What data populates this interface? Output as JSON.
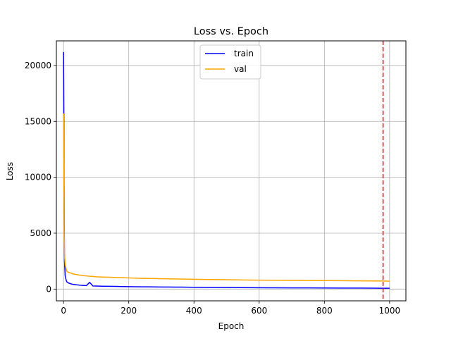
{
  "chart_data": {
    "type": "line",
    "title": "Loss vs. Epoch",
    "xlabel": "Epoch",
    "ylabel": "Loss",
    "xlim": [
      -22,
      1050
    ],
    "ylim": [
      -1050,
      22200
    ],
    "grid": true,
    "legend_placement": "top-center",
    "x_ticks": [
      0,
      200,
      400,
      600,
      800,
      1000
    ],
    "y_ticks": [
      0,
      5000,
      10000,
      15000,
      20000
    ],
    "series": [
      {
        "name": "train",
        "color": "#0000ff",
        "x": [
          0,
          1,
          2,
          3,
          5,
          8,
          10,
          15,
          20,
          25,
          30,
          40,
          50,
          60,
          70,
          80,
          90,
          100,
          120,
          140,
          160,
          180,
          200,
          220,
          240,
          260,
          280,
          300,
          320,
          340,
          360,
          380,
          400,
          450,
          500,
          550,
          600,
          650,
          700,
          750,
          800,
          850,
          900,
          950,
          980,
          1000
        ],
        "values": [
          21200,
          15000,
          6500,
          2500,
          1200,
          800,
          650,
          550,
          500,
          450,
          420,
          380,
          350,
          330,
          310,
          600,
          280,
          270,
          260,
          250,
          240,
          230,
          220,
          210,
          205,
          200,
          195,
          190,
          185,
          180,
          175,
          170,
          165,
          150,
          140,
          130,
          120,
          115,
          110,
          105,
          100,
          95,
          90,
          85,
          80,
          75
        ]
      },
      {
        "name": "val",
        "color": "#ffa500",
        "x": [
          0,
          1,
          2,
          3,
          5,
          8,
          10,
          15,
          20,
          25,
          30,
          40,
          50,
          60,
          70,
          80,
          90,
          100,
          120,
          140,
          160,
          180,
          200,
          220,
          240,
          260,
          280,
          300,
          320,
          340,
          360,
          380,
          400,
          450,
          500,
          550,
          600,
          650,
          700,
          750,
          800,
          850,
          900,
          950,
          980,
          1000
        ],
        "values": [
          15700,
          11000,
          5000,
          3000,
          2200,
          1800,
          1600,
          1500,
          1450,
          1400,
          1350,
          1300,
          1250,
          1200,
          1180,
          1150,
          1130,
          1100,
          1080,
          1060,
          1040,
          1020,
          1000,
          980,
          960,
          950,
          940,
          930,
          920,
          910,
          900,
          890,
          880,
          860,
          840,
          820,
          800,
          790,
          780,
          770,
          760,
          750,
          740,
          730,
          720,
          710
        ]
      }
    ],
    "annotations": [
      {
        "type": "vline",
        "x": 980,
        "color": "#ff0000",
        "style": "dashed"
      }
    ]
  }
}
